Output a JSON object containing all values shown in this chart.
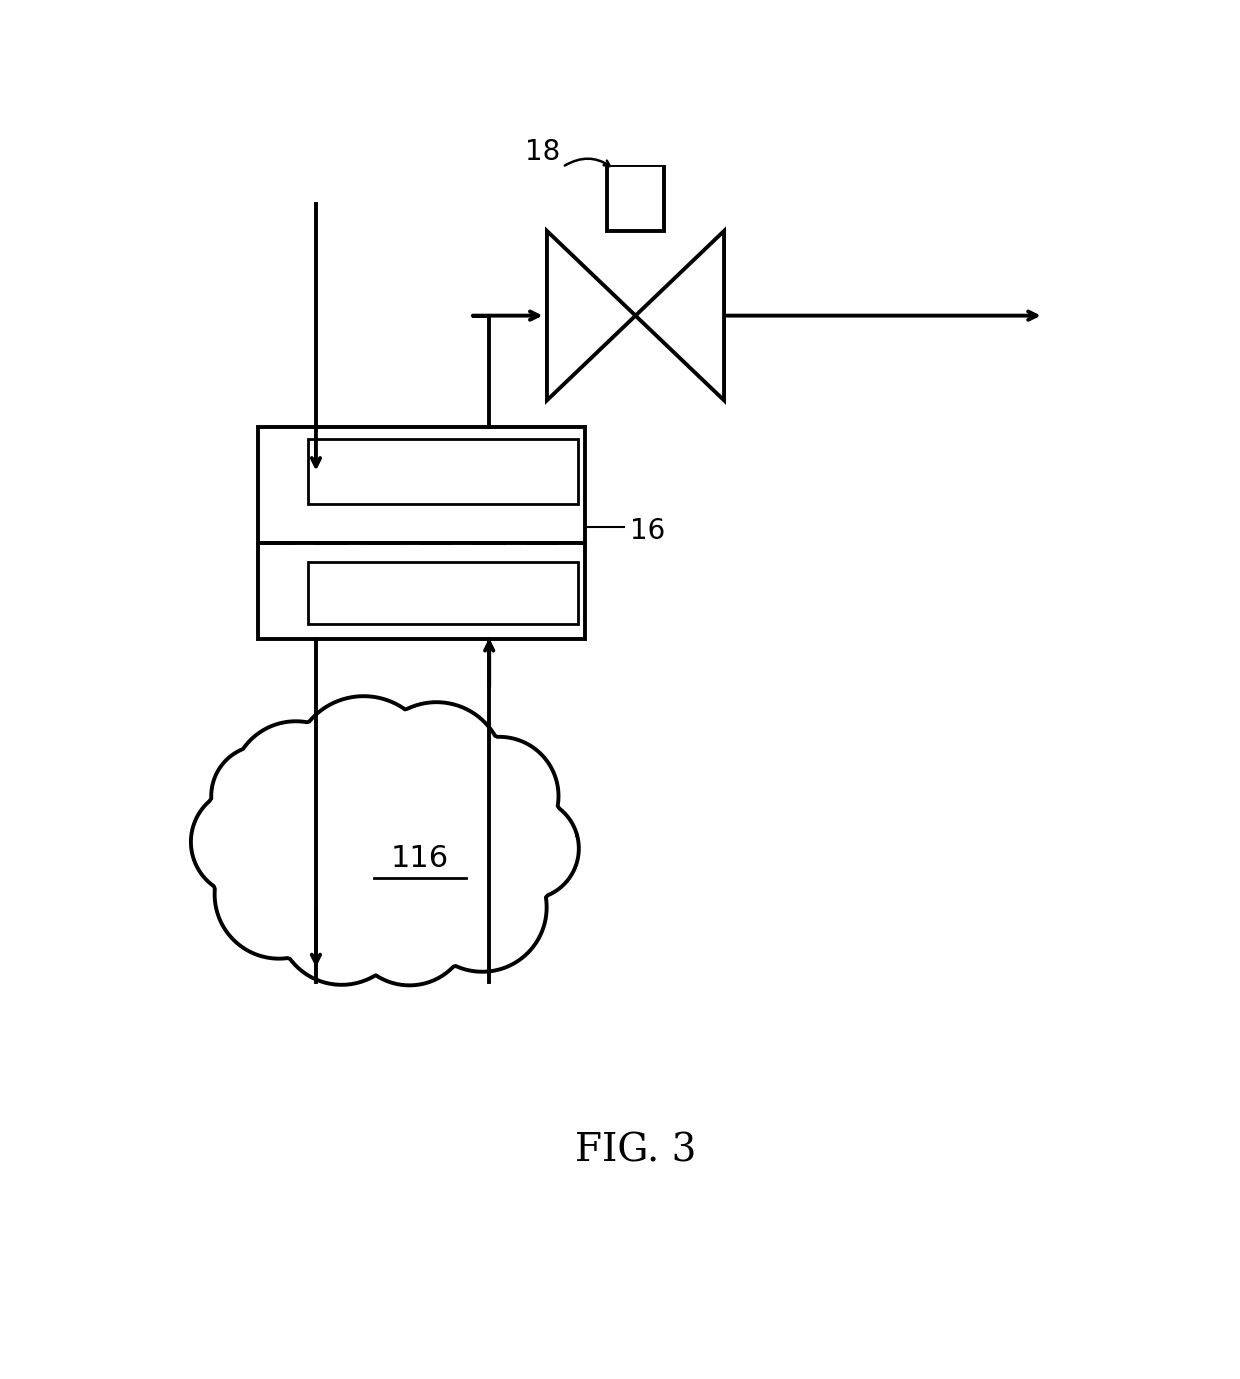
{
  "bg_color": "#ffffff",
  "line_color": "#000000",
  "fig_width": 12.4,
  "fig_height": 13.79,
  "title": "FIG. 3",
  "label_18": "18",
  "label_16": "16",
  "label_116": "116"
}
